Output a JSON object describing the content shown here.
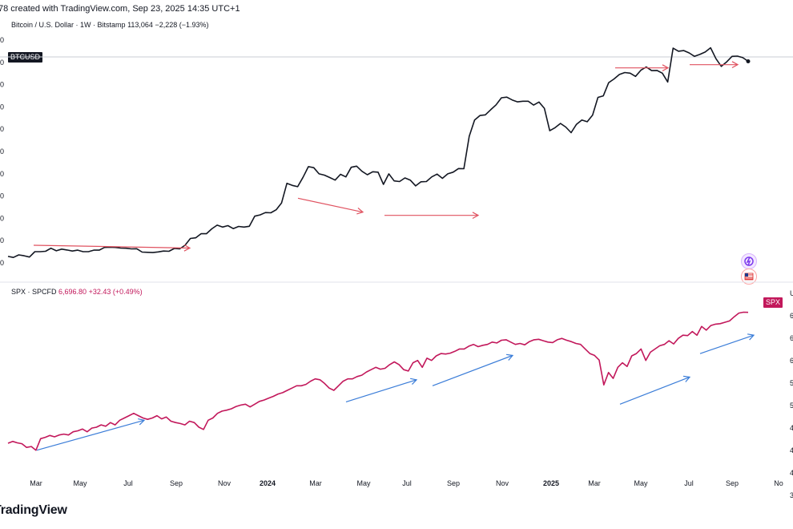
{
  "header": {
    "caption": "78 created with TradingView.com, Sep 23, 2025 14:35 UTC+1"
  },
  "btc_legend": {
    "symbol": "Bitcoin / U.S. Dollar · 1W · Bitstamp",
    "last": "113,064",
    "change": "−2,228 (−1.93%)",
    "tag": "BTCUSD",
    "color": "#131722"
  },
  "spx_legend": {
    "symbol": "SPX · SPCFD",
    "last": "6,696.80",
    "change": "+32.43 (+0.49%)",
    "tag": "SPX",
    "color": "#c2185b"
  },
  "brand": "TradingView",
  "icons": [
    "flash-badge-icon",
    "us-flag-icon"
  ],
  "chart_data": [
    {
      "type": "line",
      "title": "Bitcoin / U.S. Dollar · 1W · Bitstamp",
      "series": [
        {
          "name": "BTCUSD",
          "color": "#131722",
          "x": [
            0,
            1,
            2,
            3,
            4,
            5,
            6,
            7,
            8,
            9,
            10,
            11,
            12,
            13,
            14,
            15,
            16,
            17,
            18,
            19,
            20,
            21,
            22,
            23,
            24,
            25,
            26,
            27,
            28,
            29,
            30,
            31,
            32,
            33,
            34,
            35,
            36,
            37,
            38,
            39,
            40,
            41,
            42,
            43,
            44,
            45,
            46,
            47,
            48,
            49,
            50,
            51,
            52,
            53,
            54,
            55,
            56,
            57,
            58,
            59,
            60,
            61,
            62,
            63,
            64,
            65,
            66,
            67,
            68,
            69,
            70,
            71,
            72,
            73,
            74,
            75,
            76,
            77,
            78,
            79,
            80,
            81,
            82,
            83,
            84,
            85,
            86,
            87,
            88,
            89,
            90,
            91,
            92,
            93,
            94,
            95,
            96,
            97,
            98,
            99,
            100,
            101,
            102,
            103,
            104,
            105,
            106,
            107,
            108,
            109,
            110,
            111,
            112,
            113,
            114,
            115,
            116,
            117,
            118,
            119,
            120,
            121,
            122,
            123,
            124,
            125,
            126,
            127,
            128,
            129,
            130,
            131,
            132,
            133,
            134,
            135,
            136,
            137,
            138
          ],
          "values": [
            21800,
            21300,
            22500,
            22100,
            21500,
            24000,
            24000,
            24200,
            25600,
            24400,
            25200,
            24800,
            24300,
            24700,
            24000,
            24000,
            24700,
            24700,
            26000,
            26100,
            26000,
            25700,
            25600,
            25300,
            25400,
            23800,
            23700,
            23600,
            23900,
            24300,
            24200,
            25500,
            25300,
            27000,
            30200,
            30500,
            32400,
            32400,
            34700,
            36400,
            35500,
            36200,
            34800,
            35800,
            35500,
            35900,
            40600,
            41200,
            42300,
            42200,
            43600,
            46800,
            56000,
            55000,
            54400,
            58800,
            63800,
            63300,
            60400,
            59800,
            58700,
            57500,
            60200,
            59000,
            63500,
            64000,
            61600,
            60000,
            61400,
            61200,
            55500,
            60400,
            57100,
            56800,
            58500,
            57500,
            54800,
            56700,
            56800,
            59000,
            60300,
            58300,
            60400,
            61200,
            62900,
            62800,
            78000,
            85600,
            87700,
            88000,
            90400,
            92700,
            96000,
            96300,
            95000,
            94100,
            94400,
            94400,
            92600,
            94000,
            91100,
            80600,
            82000,
            84000,
            82300,
            79700,
            83600,
            85600,
            84800,
            87900,
            96200,
            96900,
            103100,
            104800,
            106900,
            107800,
            107500,
            106000,
            108900,
            110400,
            108700,
            108800,
            107500,
            103400,
            119200,
            117800,
            118100,
            117000,
            115400,
            116300,
            117400,
            119400,
            114300,
            110700,
            112800,
            115400,
            115500,
            114800,
            113064
          ]
        }
      ],
      "xlim": [
        0,
        139
      ],
      "ylim": [
        18000,
        123000
      ],
      "annotations": [
        {
          "type": "arrow",
          "color": "#e05260",
          "from": [
            14,
            27000
          ],
          "to": [
            79,
            25700
          ]
        },
        {
          "type": "arrow",
          "color": "#e05260",
          "from": [
            124,
            49000
          ],
          "to": [
            151,
            42500
          ]
        },
        {
          "type": "arrow",
          "color": "#e05260",
          "from": [
            160,
            41000
          ],
          "to": [
            199,
            41000
          ]
        },
        {
          "type": "arrow",
          "color": "#e05260",
          "from": [
            256,
            110000
          ],
          "to": [
            278,
            110000
          ]
        },
        {
          "type": "arrow",
          "color": "#e05260",
          "from": [
            287,
            111500
          ],
          "to": [
            307,
            111500
          ]
        }
      ]
    },
    {
      "type": "line",
      "title": "SPX · SPCFD",
      "series": [
        {
          "name": "SPX",
          "color": "#c2185b",
          "values": [
            3850,
            3890,
            3860,
            3840,
            3760,
            3780,
            3700,
            3950,
            3980,
            4020,
            3990,
            4030,
            4050,
            4030,
            4100,
            4120,
            4160,
            4100,
            4180,
            4200,
            4250,
            4220,
            4300,
            4250,
            4350,
            4400,
            4450,
            4500,
            4450,
            4400,
            4370,
            4400,
            4450,
            4380,
            4420,
            4330,
            4300,
            4280,
            4250,
            4330,
            4300,
            4200,
            4150,
            4350,
            4400,
            4500,
            4550,
            4570,
            4600,
            4650,
            4680,
            4700,
            4640,
            4700,
            4760,
            4790,
            4830,
            4870,
            4920,
            4950,
            5000,
            5050,
            5100,
            5100,
            5130,
            5200,
            5250,
            5230,
            5150,
            5050,
            5000,
            5100,
            5200,
            5250,
            5250,
            5300,
            5330,
            5400,
            5450,
            5500,
            5460,
            5480,
            5560,
            5620,
            5560,
            5450,
            5420,
            5600,
            5650,
            5500,
            5700,
            5650,
            5750,
            5800,
            5790,
            5810,
            5850,
            5900,
            5900,
            5960,
            6000,
            5950,
            5980,
            6000,
            6050,
            6030,
            6090,
            6100,
            6050,
            6000,
            6020,
            5990,
            6060,
            6100,
            6110,
            6080,
            6050,
            6040,
            6100,
            6130,
            6090,
            6060,
            6020,
            6000,
            5900,
            5800,
            5760,
            5660,
            5120,
            5390,
            5260,
            5500,
            5600,
            5520,
            5750,
            5800,
            5900,
            5650,
            5830,
            5900,
            5970,
            6000,
            6080,
            6010,
            6130,
            6200,
            6190,
            6280,
            6200,
            6390,
            6310,
            6410,
            6440,
            6450,
            6480,
            6510,
            6600,
            6680,
            6700,
            6696.8
          ]
        }
      ],
      "ylim": [
        3450,
        6900
      ],
      "annotations": [
        {
          "type": "arrow",
          "color": "#3b7dd8",
          "from": [
            46,
            3700
          ],
          "to": [
            180,
            4350
          ]
        },
        {
          "type": "arrow",
          "color": "#3b7dd8",
          "from": [
            432,
            4750
          ],
          "to": [
            520,
            5230
          ]
        },
        {
          "type": "arrow",
          "color": "#3b7dd8",
          "from": [
            540,
            5100
          ],
          "to": [
            640,
            5760
          ]
        },
        {
          "type": "arrow",
          "color": "#3b7dd8",
          "from": [
            774,
            4700
          ],
          "to": [
            861,
            5290
          ]
        },
        {
          "type": "arrow",
          "color": "#3b7dd8",
          "from": [
            874,
            5800
          ],
          "to": [
            941,
            6200
          ]
        }
      ]
    }
  ],
  "x_axis": {
    "ticks": [
      "Mar",
      "May",
      "Jul",
      "Sep",
      "Nov",
      "2024",
      "Mar",
      "May",
      "Jul",
      "Sep",
      "Nov",
      "2025",
      "Mar",
      "May",
      "Jul",
      "Sep",
      "No"
    ]
  },
  "spx_axis_right": [
    "U",
    "6",
    "6",
    "6",
    "5",
    "5",
    "4",
    "4",
    "4",
    "3"
  ]
}
